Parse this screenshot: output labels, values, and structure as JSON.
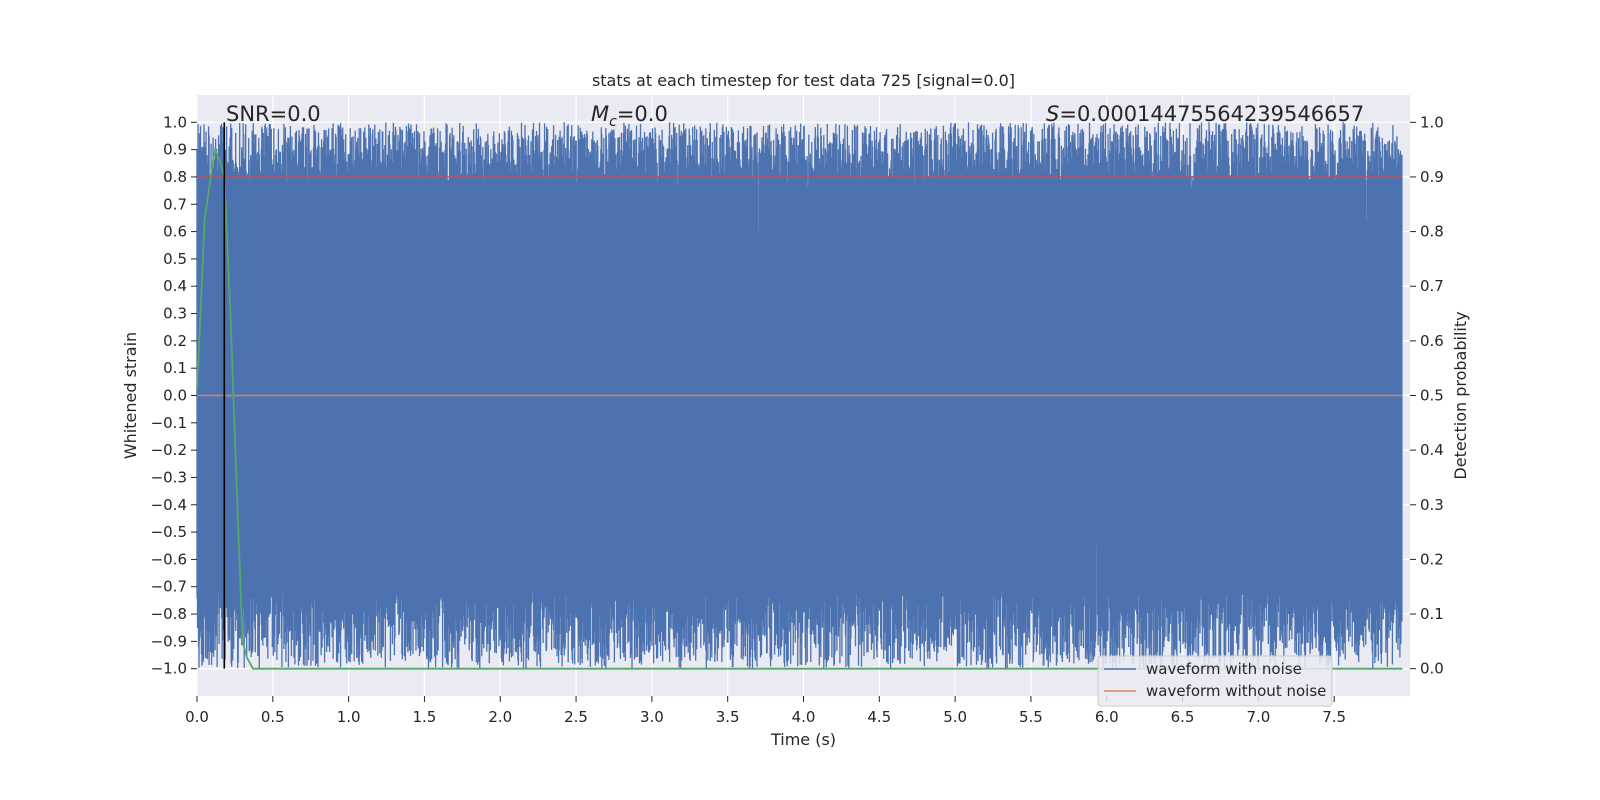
{
  "chart_data": {
    "type": "line",
    "title": "stats at each timestep for test data 725 [signal=0.0]",
    "xlabel": "Time (s)",
    "ylabel": "Whitened strain",
    "y2label": "Detection probability",
    "xlim": [
      0.0,
      8.0
    ],
    "ylim": [
      -1.1,
      1.1
    ],
    "y2lim": [
      -0.05,
      1.05
    ],
    "xticks": [
      "0.0",
      "0.5",
      "1.0",
      "1.5",
      "2.0",
      "2.5",
      "3.0",
      "3.5",
      "4.0",
      "4.5",
      "5.0",
      "5.5",
      "6.0",
      "6.5",
      "7.0",
      "7.5"
    ],
    "yticks": [
      "1.0",
      "0.9",
      "0.8",
      "0.7",
      "0.6",
      "0.5",
      "0.4",
      "0.3",
      "0.2",
      "0.1",
      "0.0",
      "−0.1",
      "−0.2",
      "−0.3",
      "−0.4",
      "−0.5",
      "−0.6",
      "−0.7",
      "−0.8",
      "−0.9",
      "−1.0"
    ],
    "y2ticks": [
      "1.0",
      "0.9",
      "0.8",
      "0.7",
      "0.6",
      "0.5",
      "0.4",
      "0.3",
      "0.2",
      "0.1",
      "0.0"
    ],
    "grid": true,
    "annotations": {
      "snr": "SNR=0.0",
      "mc_symbol": "M",
      "mc_sub": "c",
      "mc_value": "=0.0",
      "s_symbol": "S",
      "s_value": "=0.00014475564239546657"
    },
    "vertical_marker_x": 0.18,
    "series": [
      {
        "name": "waveform with noise",
        "color": "#4c72b0",
        "description_values": "dense noise filling approximately -1.0 to 1.0 across 0 to 8 s"
      },
      {
        "name": "waveform without noise",
        "color": "#dd8452",
        "values_constant": 0.0
      },
      {
        "axis": "right",
        "color": "#55a868",
        "x": [
          0.0,
          0.05,
          0.1,
          0.12,
          0.15,
          0.18,
          0.22,
          0.26,
          0.3,
          0.33,
          0.37,
          0.5,
          1.0,
          2.0,
          3.0,
          4.0,
          5.0,
          6.0,
          7.0,
          7.95
        ],
        "values": [
          0.51,
          0.82,
          0.92,
          0.95,
          0.93,
          0.9,
          0.65,
          0.35,
          0.05,
          0.02,
          0.0,
          0.0,
          0.0,
          0.0,
          0.0,
          0.0,
          0.0,
          0.0,
          0.0,
          0.0
        ]
      },
      {
        "axis": "right",
        "color": "#c44e52",
        "values_constant": 0.9
      }
    ],
    "legend": {
      "placement": "lower-right",
      "entries": [
        "waveform with noise",
        "waveform without noise"
      ]
    },
    "colors": {
      "background": "#eaeaf2",
      "grid": "#ffffff",
      "noise": "#4c72b0",
      "clean": "#dd8452",
      "probability": "#55a868",
      "threshold": "#c44e52",
      "marker": "#000000"
    }
  }
}
